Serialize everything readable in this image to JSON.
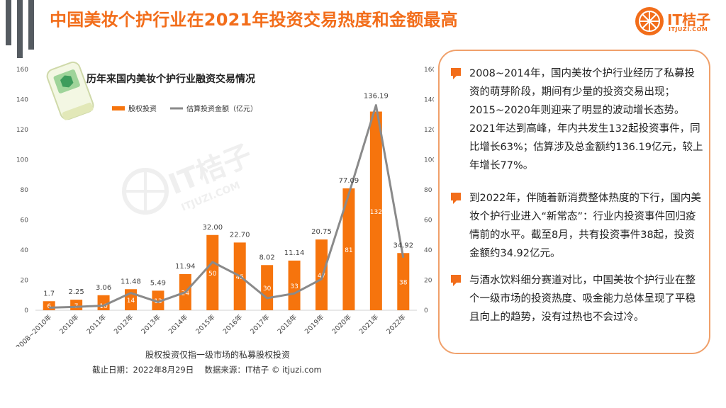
{
  "page": {
    "title": "中国美妆个护行业在2021年投资交易热度和金额最高",
    "logo_text": "IT桔子",
    "logo_sub": "ITJUZI.COM",
    "watermark_main": "IT桔子",
    "watermark_sub": "ITJUZI.COM",
    "footnote": "股权投资仅指一级市场的私募股权投资",
    "source": "截止日期：2022年8月29日　 数据来源：IT桔子 © itjuzi.com",
    "accent_color": "#f26d1a",
    "bar_color": "#f6740d",
    "line_color": "#8a8a8a"
  },
  "chart_data": {
    "type": "bar",
    "title": "历年来国内美妆个护行业融资交易情况",
    "categories": [
      "2008~2010年",
      "2010年",
      "2011年",
      "2012年",
      "2013年",
      "2014年",
      "2015年",
      "2016年",
      "2017年",
      "2018年",
      "2019年",
      "2020年",
      "2021年",
      "2022年"
    ],
    "series": [
      {
        "name": "股权投资",
        "kind": "bar",
        "axis": "left",
        "values": [
          6,
          7,
          10,
          14,
          13,
          24,
          50,
          45,
          30,
          33,
          47,
          81,
          132,
          38
        ]
      },
      {
        "name": "估算投资金额（亿元）",
        "kind": "line",
        "axis": "right",
        "values": [
          1.7,
          2.25,
          3.06,
          11.48,
          5.49,
          11.94,
          32.0,
          22.7,
          8.02,
          11.14,
          20.75,
          77.09,
          136.19,
          34.92
        ]
      }
    ],
    "line_labels": [
      "1.7",
      "2.25",
      "3.06",
      "11.48",
      "5.49",
      "11.94",
      "32.00",
      "22.70",
      "8.02",
      "11.14",
      "20.75",
      "77.09",
      "136.19",
      "34.92"
    ],
    "ylim": [
      0,
      160
    ],
    "y2lim": [
      0,
      160
    ],
    "yticks": [
      0,
      20,
      40,
      60,
      80,
      100,
      120,
      140,
      160
    ],
    "legend_placement": "top-left",
    "grid": false
  },
  "panel": {
    "bullets": [
      {
        "icon": "speech-bubble-icon",
        "text": "2008~2014年，国内美妆个护行业经历了私募投资的萌芽阶段，期间有少量的投资交易出现；2015~2020年则迎来了明显的波动增长态势。2021年达到高峰，年内共发生132起投资事件，同比增长63%；估算涉及总金额约136.19亿元，较上年增长77%。"
      },
      {
        "icon": "speech-bubble-icon",
        "text": "到2022年，伴随着新消费整体热度的下行，国内美妆个护行业进入“新常态”：行业内投资事件回归疫情前的水平。截至8月，共有投资事件38起，投资金额约34.92亿元。"
      },
      {
        "icon": "speech-bubble-icon",
        "text": "与酒水饮料细分赛道对比，中国美妆个护行业在整个一级市场的投资热度、吸金能力总体呈现了平稳且向上的趋势，没有过热也不会过冷。"
      }
    ]
  }
}
